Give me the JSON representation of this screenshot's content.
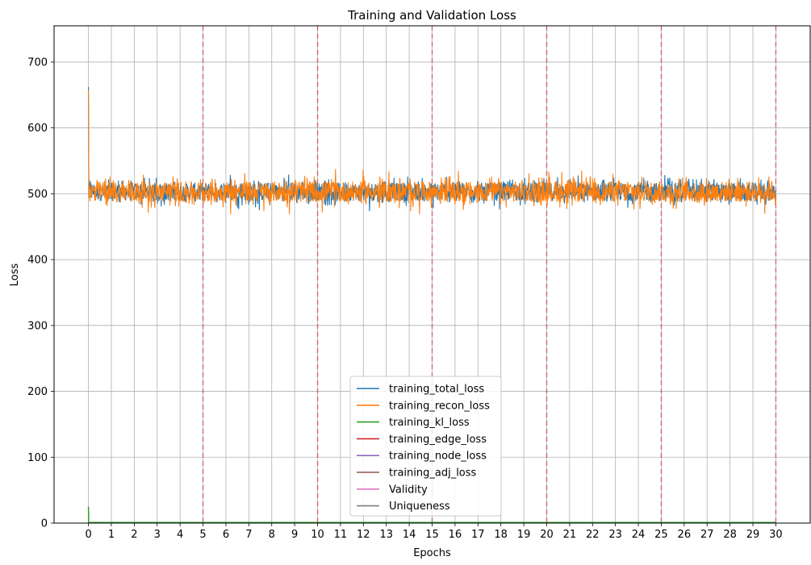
{
  "chart_data": {
    "type": "line",
    "title": "Training and Validation Loss",
    "xlabel": "Epochs",
    "ylabel": "Loss",
    "xlim": [
      -1.5,
      31.5
    ],
    "ylim": [
      0,
      755
    ],
    "x_ticks": [
      0,
      1,
      2,
      3,
      4,
      5,
      6,
      7,
      8,
      9,
      10,
      11,
      12,
      13,
      14,
      15,
      16,
      17,
      18,
      19,
      20,
      21,
      22,
      23,
      24,
      25,
      26,
      27,
      28,
      29,
      30
    ],
    "y_ticks": [
      0,
      100,
      200,
      300,
      400,
      500,
      600,
      700
    ],
    "grid": true,
    "legend_position": "lower-center",
    "epoch_markers": [
      5,
      10,
      15,
      20,
      25,
      30
    ],
    "epoch_marker_color": "#d62728",
    "series": [
      {
        "name": "training_total_loss",
        "color": "#1f77b4",
        "start": 662,
        "mean": 503,
        "band": [
          478,
          538
        ]
      },
      {
        "name": "training_recon_loss",
        "color": "#ff7f0e",
        "start": 658,
        "mean": 503,
        "band": [
          472,
          540
        ]
      },
      {
        "name": "training_kl_loss",
        "color": "#2ca02c",
        "start": 25,
        "mean": 1
      },
      {
        "name": "training_edge_loss",
        "color": "#d62728",
        "start": 1,
        "mean": 1
      },
      {
        "name": "training_node_loss",
        "color": "#9467bd",
        "start": 1,
        "mean": 1
      },
      {
        "name": "training_adj_loss",
        "color": "#8c564b",
        "start": 1,
        "mean": 1
      },
      {
        "name": "Validity",
        "color": "#e377c2",
        "start": 1,
        "mean": 1
      },
      {
        "name": "Uniqueness",
        "color": "#7f7f7f",
        "start": 1,
        "mean": 1
      }
    ]
  }
}
